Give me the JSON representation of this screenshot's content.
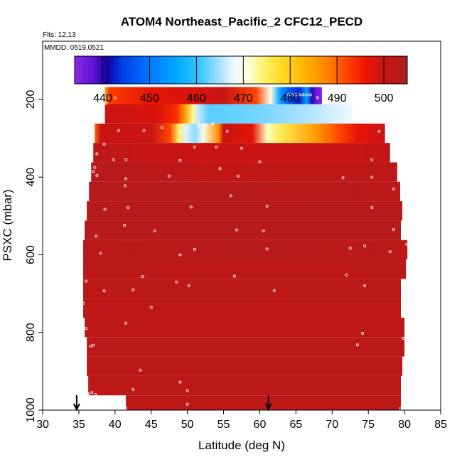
{
  "chart_data": {
    "type": "heatmap",
    "title": "ATOM4 Northeast_Pacific_2 CFC12_PECD",
    "flights_label": "Flts: 12,13",
    "dates_label": "MMDD: 0519,0521",
    "xlabel": "Latitude (deg N)",
    "ylabel": "PSXC (mbar)",
    "xlim": [
      30,
      85
    ],
    "ylim": [
      1000,
      50
    ],
    "x_ticks": [
      30,
      35,
      40,
      45,
      50,
      55,
      60,
      65,
      70,
      75,
      80,
      85
    ],
    "y_ticks": [
      200,
      400,
      600,
      800,
      1000
    ],
    "colorbar": {
      "min": 434,
      "max": 505,
      "ticks": [
        440,
        450,
        460,
        470,
        480,
        490,
        500
      ]
    },
    "arrows_x": [
      34.7,
      61.2
    ],
    "colors": {
      "frame": "#000000",
      "background": "#ffffff",
      "point": "#ffffff"
    },
    "rows": [
      {
        "p_top": 168,
        "p_bot": 212,
        "x_start": 38.6,
        "x_end": 68.6,
        "stops": [
          [
            38.6,
            485
          ],
          [
            39.3,
            493
          ],
          [
            45,
            497
          ],
          [
            55,
            500
          ],
          [
            59.5,
            492
          ],
          [
            61.5,
            470
          ],
          [
            62.8,
            455
          ],
          [
            63.8,
            448
          ],
          [
            65.5,
            443
          ],
          [
            66.5,
            455
          ],
          [
            67.2,
            440
          ],
          [
            67.8,
            437
          ],
          [
            68.6,
            434
          ]
        ]
      },
      {
        "p_top": 212,
        "p_bot": 262,
        "x_start": 38.6,
        "x_end": 72.8,
        "stops": [
          [
            38.6,
            500
          ],
          [
            46,
            498
          ],
          [
            48.5,
            494
          ],
          [
            49.7,
            485
          ],
          [
            50.8,
            473
          ],
          [
            51.5,
            466
          ],
          [
            53,
            462
          ],
          [
            60,
            463
          ],
          [
            66,
            465
          ],
          [
            72.8,
            468
          ]
        ]
      },
      {
        "p_top": 262,
        "p_bot": 312,
        "x_start": 37.2,
        "x_end": 77.3,
        "stops": [
          [
            37.2,
            490
          ],
          [
            38,
            500
          ],
          [
            45,
            500
          ],
          [
            47.6,
            492
          ],
          [
            48.8,
            475
          ],
          [
            49.8,
            467
          ],
          [
            51.1,
            464
          ],
          [
            52.2,
            470
          ],
          [
            54.3,
            487
          ],
          [
            55,
            500
          ],
          [
            59,
            497
          ],
          [
            61,
            472
          ],
          [
            63,
            476
          ],
          [
            68,
            486
          ],
          [
            71,
            492
          ],
          [
            73.5,
            497
          ],
          [
            77.3,
            500
          ]
        ]
      },
      {
        "p_top": 312,
        "p_bot": 362,
        "x_start": 37.0,
        "x_end": 78.0,
        "stops": [
          [
            37,
            502
          ],
          [
            42,
            501
          ],
          [
            45,
            500
          ],
          [
            52,
            500
          ],
          [
            58,
            500
          ],
          [
            62,
            500
          ],
          [
            70,
            500
          ],
          [
            78,
            501
          ]
        ]
      },
      {
        "p_top": 362,
        "p_bot": 412,
        "x_start": 36.7,
        "x_end": 79.0,
        "stops": [
          [
            36.7,
            503
          ],
          [
            48,
            502
          ],
          [
            55,
            501
          ],
          [
            65,
            502
          ],
          [
            79,
            502
          ]
        ]
      },
      {
        "p_top": 412,
        "p_bot": 462,
        "x_start": 36.4,
        "x_end": 79.4,
        "stops": [
          [
            36.4,
            503
          ],
          [
            55,
            503
          ],
          [
            79.4,
            502
          ]
        ]
      },
      {
        "p_top": 462,
        "p_bot": 512,
        "x_start": 36.1,
        "x_end": 79.7,
        "stops": [
          [
            36.1,
            503
          ],
          [
            79.7,
            503
          ]
        ]
      },
      {
        "p_top": 512,
        "p_bot": 562,
        "x_start": 35.8,
        "x_end": 79.5,
        "stops": [
          [
            35.8,
            503
          ],
          [
            79.5,
            503
          ]
        ]
      },
      {
        "p_top": 562,
        "p_bot": 612,
        "x_start": 35.6,
        "x_end": 80.4,
        "stops": [
          [
            35.6,
            502
          ],
          [
            60,
            503
          ],
          [
            80.4,
            502
          ]
        ]
      },
      {
        "p_top": 612,
        "p_bot": 662,
        "x_start": 35.6,
        "x_end": 80.2,
        "stops": [
          [
            35.6,
            502
          ],
          [
            80.2,
            502
          ]
        ]
      },
      {
        "p_top": 662,
        "p_bot": 712,
        "x_start": 35.6,
        "x_end": 79.5,
        "stops": [
          [
            35.6,
            502
          ],
          [
            80,
            502
          ]
        ]
      },
      {
        "p_top": 712,
        "p_bot": 762,
        "x_start": 35.6,
        "x_end": 79.5,
        "stops": [
          [
            35.6,
            502
          ],
          [
            79.5,
            502
          ]
        ]
      },
      {
        "p_top": 762,
        "p_bot": 812,
        "x_start": 35.8,
        "x_end": 80.0,
        "stops": [
          [
            35.8,
            502
          ],
          [
            80,
            502
          ]
        ]
      },
      {
        "p_top": 812,
        "p_bot": 862,
        "x_start": 36.1,
        "x_end": 80.0,
        "stops": [
          [
            36.1,
            502
          ],
          [
            80,
            502
          ]
        ]
      },
      {
        "p_top": 862,
        "p_bot": 912,
        "x_start": 36.1,
        "x_end": 79.7,
        "stops": [
          [
            36.1,
            502
          ],
          [
            79.7,
            502
          ]
        ]
      },
      {
        "p_top": 912,
        "p_bot": 962,
        "x_start": 36.3,
        "x_end": 79.5,
        "stops": [
          [
            36.3,
            502
          ],
          [
            79.5,
            502
          ]
        ]
      },
      {
        "p_top": 962,
        "p_bot": 1000,
        "x_start": 41.5,
        "x_end": 79.5,
        "stops": [
          [
            41.5,
            502
          ],
          [
            79.5,
            502
          ]
        ]
      }
    ],
    "points": [
      [
        38.6,
        196
      ],
      [
        40.0,
        196
      ],
      [
        64.0,
        188
      ],
      [
        64.5,
        188
      ],
      [
        65.0,
        188
      ],
      [
        65.5,
        188
      ],
      [
        66.0,
        188
      ],
      [
        66.5,
        188
      ],
      [
        67.0,
        188
      ],
      [
        68.0,
        195
      ],
      [
        38.7,
        210
      ],
      [
        52.5,
        265
      ],
      [
        53.5,
        262
      ],
      [
        51.5,
        268
      ],
      [
        46.5,
        272
      ],
      [
        50.0,
        275
      ],
      [
        40.5,
        280
      ],
      [
        44.0,
        280
      ],
      [
        49.0,
        282
      ],
      [
        55.5,
        282
      ],
      [
        61.5,
        285
      ],
      [
        76.5,
        282
      ],
      [
        38.5,
        315
      ],
      [
        51.0,
        322
      ],
      [
        54.0,
        322
      ],
      [
        57.5,
        326
      ],
      [
        37.5,
        340
      ],
      [
        39.8,
        355
      ],
      [
        41.5,
        355
      ],
      [
        49.0,
        357
      ],
      [
        60.0,
        360
      ],
      [
        75.5,
        355
      ],
      [
        37.2,
        375
      ],
      [
        37.0,
        385
      ],
      [
        54.5,
        378
      ],
      [
        37.5,
        396
      ],
      [
        57.0,
        397
      ],
      [
        71.5,
        402
      ],
      [
        47.5,
        397
      ],
      [
        41.5,
        404
      ],
      [
        41.4,
        422
      ],
      [
        75.5,
        400
      ],
      [
        78.5,
        430
      ],
      [
        56.0,
        448
      ],
      [
        41.8,
        478
      ],
      [
        38.6,
        483
      ],
      [
        50.5,
        477
      ],
      [
        61.0,
        475
      ],
      [
        75.5,
        478
      ],
      [
        41.3,
        524
      ],
      [
        45.5,
        538
      ],
      [
        56.8,
        536
      ],
      [
        60.5,
        538
      ],
      [
        78.5,
        535
      ],
      [
        35.2,
        552
      ],
      [
        37.4,
        552
      ],
      [
        80.3,
        573
      ],
      [
        72.5,
        583
      ],
      [
        74.5,
        577
      ],
      [
        61.0,
        585
      ],
      [
        51.0,
        586
      ],
      [
        78.0,
        592
      ],
      [
        49.0,
        600
      ],
      [
        38.0,
        596
      ],
      [
        36.0,
        668
      ],
      [
        43.8,
        656
      ],
      [
        56.5,
        655
      ],
      [
        72.0,
        652
      ],
      [
        74.5,
        680
      ],
      [
        42.5,
        690
      ],
      [
        38.5,
        693
      ],
      [
        48.5,
        670
      ],
      [
        50.2,
        680
      ],
      [
        62.0,
        692
      ],
      [
        35.6,
        725
      ],
      [
        45.0,
        735
      ],
      [
        41.5,
        776
      ],
      [
        36.0,
        790
      ],
      [
        36.6,
        835
      ],
      [
        37.0,
        833
      ],
      [
        73.5,
        832
      ],
      [
        74.2,
        802
      ],
      [
        79.8,
        815
      ],
      [
        43.5,
        897
      ],
      [
        49.0,
        928
      ],
      [
        50.0,
        950
      ],
      [
        50.0,
        985
      ],
      [
        42.5,
        947
      ],
      [
        36.3,
        958
      ],
      [
        36.8,
        955
      ],
      [
        37.3,
        960
      ],
      [
        36.2,
        960
      ],
      [
        41.5,
        995
      ],
      [
        79.5,
        995
      ]
    ]
  }
}
